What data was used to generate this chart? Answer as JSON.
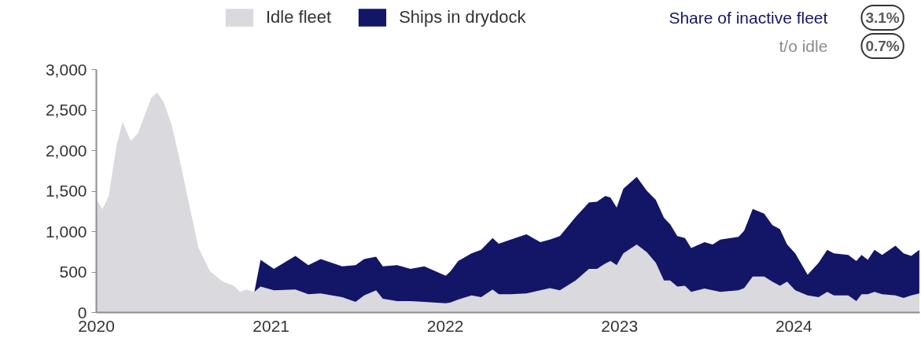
{
  "chart_data": {
    "type": "area",
    "stacked": true,
    "x": [
      "2020-01-01",
      "2020-01-14",
      "2020-01-27",
      "2020-02-12",
      "2020-02-25",
      "2020-03-13",
      "2020-03-28",
      "2020-04-25",
      "2020-05-07",
      "2020-05-21",
      "2020-06-07",
      "2020-06-22",
      "2020-07-08",
      "2020-08-02",
      "2020-08-26",
      "2020-09-22",
      "2020-10-15",
      "2020-10-28",
      "2020-11-10",
      "2020-11-27",
      "2020-12-10",
      "2021-01-07",
      "2021-02-21",
      "2021-03-20",
      "2021-04-15",
      "2021-05-30",
      "2021-06-27",
      "2021-07-15",
      "2021-08-09",
      "2021-08-23",
      "2021-09-22",
      "2021-10-20",
      "2021-11-18",
      "2022-01-02",
      "2022-01-12",
      "2022-01-28",
      "2022-02-25",
      "2022-03-17",
      "2022-04-10",
      "2022-04-23",
      "2022-05-18",
      "2022-06-20",
      "2022-07-19",
      "2022-08-08",
      "2022-08-29",
      "2022-10-01",
      "2022-10-29",
      "2022-11-15",
      "2022-12-02",
      "2022-12-13",
      "2022-12-26",
      "2023-01-09",
      "2023-02-06",
      "2023-02-27",
      "2023-03-18",
      "2023-04-04",
      "2023-04-17",
      "2023-05-02",
      "2023-05-18",
      "2023-05-31",
      "2023-06-28",
      "2023-07-15",
      "2023-07-31",
      "2023-09-07",
      "2023-09-19",
      "2023-10-07",
      "2023-10-31",
      "2023-11-17",
      "2023-12-03",
      "2023-12-18",
      "2024-01-04",
      "2024-01-30",
      "2024-02-22",
      "2024-03-11",
      "2024-03-25",
      "2024-04-24",
      "2024-05-11",
      "2024-05-22",
      "2024-06-04",
      "2024-06-18",
      "2024-07-04",
      "2024-08-01",
      "2024-08-18",
      "2024-09-03",
      "2024-09-20"
    ],
    "series": [
      {
        "name": "Idle fleet",
        "color": "#d9d9de",
        "values": [
          1390,
          1280,
          1440,
          2050,
          2355,
          2120,
          2210,
          2650,
          2715,
          2600,
          2310,
          1930,
          1485,
          795,
          510,
          380,
          330,
          255,
          285,
          255,
          320,
          275,
          285,
          225,
          235,
          190,
          130,
          210,
          275,
          170,
          140,
          140,
          130,
          115,
          125,
          160,
          210,
          190,
          285,
          225,
          225,
          235,
          275,
          300,
          275,
          395,
          540,
          540,
          605,
          635,
          585,
          730,
          840,
          745,
          615,
          395,
          395,
          320,
          330,
          255,
          295,
          275,
          255,
          275,
          300,
          445,
          445,
          380,
          330,
          380,
          275,
          210,
          190,
          255,
          210,
          210,
          140,
          225,
          225,
          255,
          225,
          210,
          180,
          210,
          235
        ]
      },
      {
        "name": "Ships in drydock",
        "color": "#131666",
        "values": [
          null,
          null,
          null,
          null,
          null,
          null,
          null,
          null,
          null,
          null,
          null,
          null,
          null,
          null,
          null,
          null,
          null,
          null,
          null,
          0,
          330,
          265,
          415,
          360,
          425,
          380,
          455,
          450,
          415,
          400,
          445,
          400,
          440,
          340,
          385,
          475,
          520,
          585,
          635,
          625,
          675,
          730,
          595,
          600,
          670,
          785,
          820,
          830,
          835,
          785,
          710,
          800,
          835,
          760,
          775,
          775,
          695,
          625,
          590,
          540,
          575,
          565,
          645,
          660,
          710,
          835,
          775,
          700,
          700,
          460,
          455,
          255,
          425,
          520,
          520,
          500,
          495,
          485,
          425,
          520,
          485,
          615,
          550,
          490,
          540
        ]
      }
    ],
    "xlim": [
      "2020-01-01",
      "2024-09-21"
    ],
    "xticks": [
      "2020",
      "2021",
      "2022",
      "2023",
      "2024"
    ],
    "ylim": [
      0,
      3000
    ],
    "yticks": [
      0,
      500,
      {
        "value": 1000,
        "label": "1,000"
      },
      {
        "value": 1500,
        "label": "1,500"
      },
      {
        "value": 2000,
        "label": "2,000"
      },
      {
        "value": 2500,
        "label": "2,500"
      },
      {
        "value": 3000,
        "label": "3,000"
      }
    ],
    "legend": "top left",
    "grid": false,
    "annotations": [
      "Share of inactive fleet",
      "3.1%",
      "t/o idle",
      "0.7%"
    ]
  }
}
